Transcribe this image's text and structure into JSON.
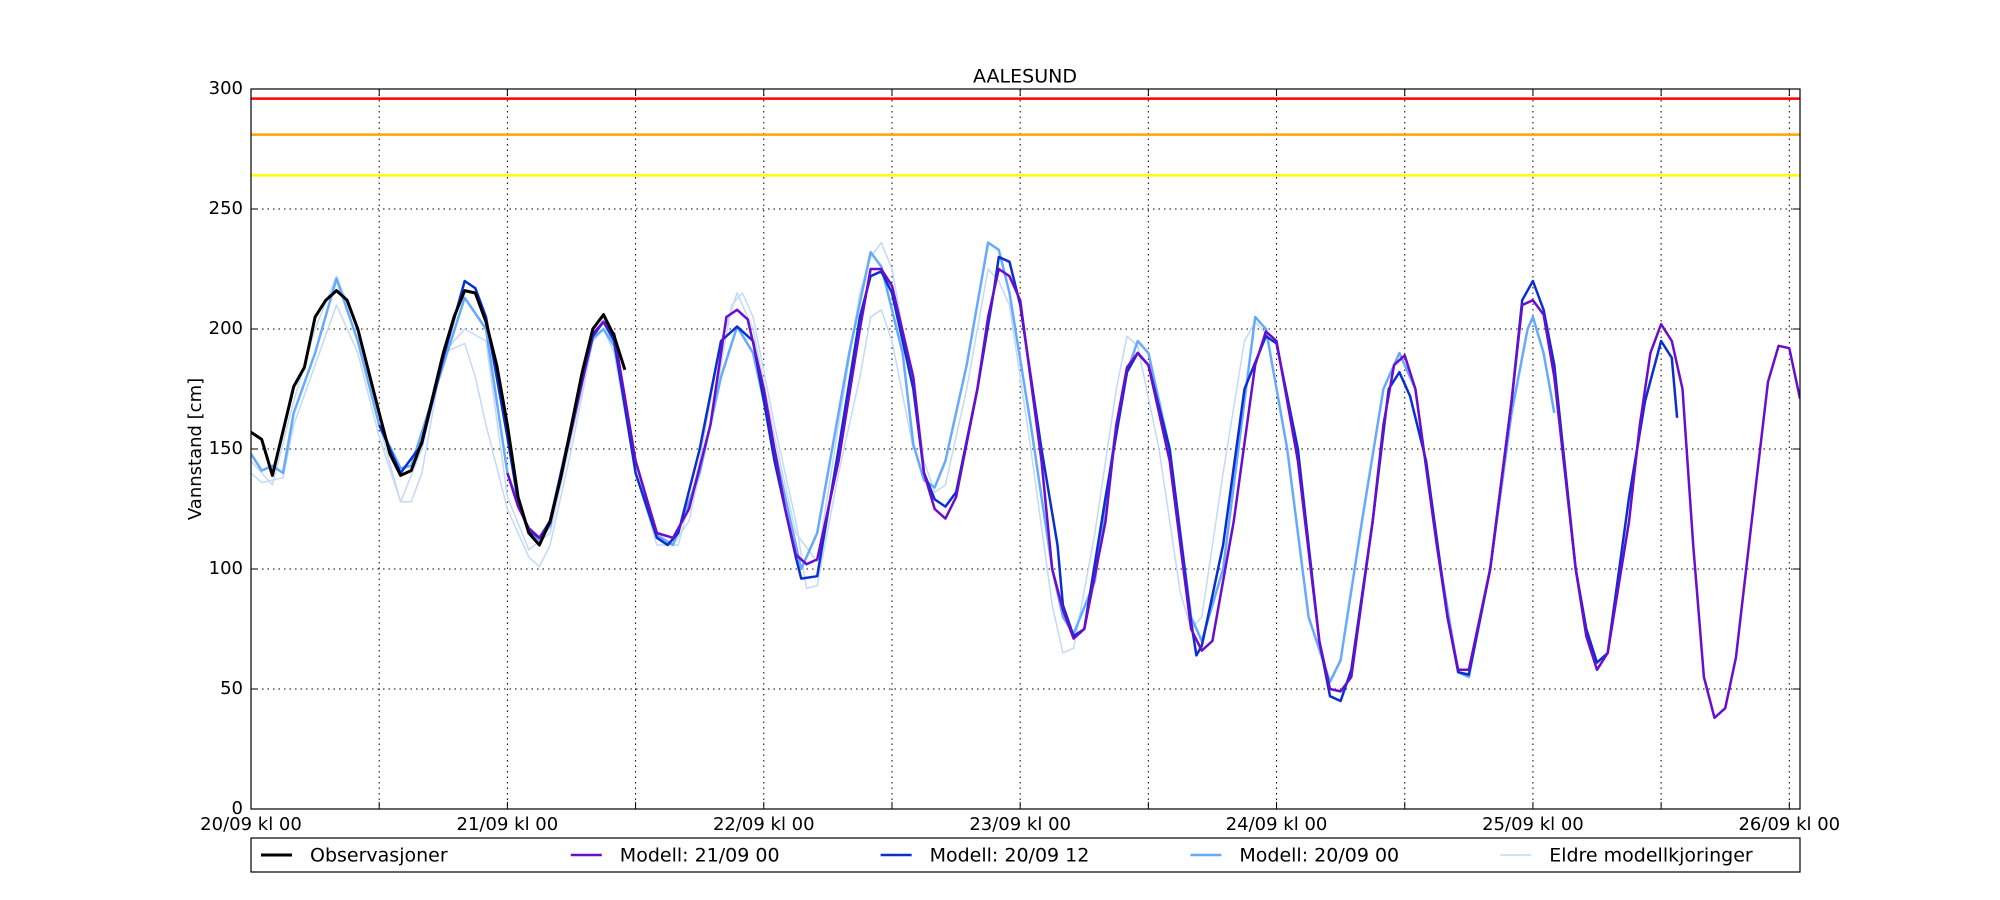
{
  "chart_data": {
    "type": "line",
    "title": "AALESUND",
    "ylabel": "Vannstand [cm]",
    "xlim": [
      0,
      145
    ],
    "xticks": [
      {
        "value": 0,
        "label": "20/09 kl 00"
      },
      {
        "value": 24,
        "label": "21/09 kl 00"
      },
      {
        "value": 48,
        "label": "22/09 kl 00"
      },
      {
        "value": 72,
        "label": "23/09 kl 00"
      },
      {
        "value": 96,
        "label": "24/09 kl 00"
      },
      {
        "value": 120,
        "label": "25/09 kl 00"
      },
      {
        "value": 144,
        "label": "26/09 kl 00"
      }
    ],
    "xminor": [
      12,
      36,
      60,
      84,
      108,
      132
    ],
    "ylim": [
      0,
      300
    ],
    "yticks": [
      0,
      50,
      100,
      150,
      200,
      250,
      300
    ],
    "grid": true,
    "legend": "bottom",
    "hlines": [
      {
        "value": 296,
        "color": "#ff0000"
      },
      {
        "value": 281,
        "color": "#ffa500"
      },
      {
        "value": 264,
        "color": "#ffff00"
      }
    ],
    "series": [
      {
        "name": "Observasjoner",
        "color": "#000000",
        "width": 3,
        "x": [
          0,
          1,
          2,
          4,
          5,
          6,
          7,
          8,
          9,
          10,
          12,
          13,
          14,
          15,
          16,
          18,
          19,
          20,
          21,
          22,
          23,
          24,
          25,
          26,
          27,
          28,
          29,
          30,
          31,
          32,
          33,
          34,
          35
        ],
        "values": [
          157,
          154,
          139,
          176,
          184,
          205,
          212,
          216,
          212,
          200,
          165,
          148,
          139,
          141,
          153,
          190,
          205,
          216,
          215,
          203,
          185,
          160,
          130,
          115,
          110,
          120,
          138,
          160,
          182,
          200,
          206,
          197,
          183
        ]
      },
      {
        "name": "Modell: 21/09 00",
        "color": "#6a0dcc",
        "width": 2.5,
        "x": [
          24,
          25,
          26,
          27,
          28,
          30,
          32,
          33,
          34,
          36,
          38,
          39.5,
          41,
          43,
          44.5,
          45.5,
          46.5,
          48,
          50,
          51,
          52,
          53,
          55,
          57,
          58,
          59,
          60,
          62,
          63,
          64,
          65,
          66,
          68,
          69,
          70,
          71,
          72,
          74,
          75,
          76,
          77,
          78,
          80,
          81,
          82,
          83,
          84,
          86,
          88,
          89,
          90,
          92,
          94,
          95,
          96,
          98,
          100,
          101,
          102,
          103,
          105,
          106,
          107,
          108,
          109,
          111,
          112,
          113,
          114,
          116,
          118,
          119,
          120,
          121,
          122,
          124,
          125,
          126,
          127,
          129,
          130,
          131,
          132,
          133,
          134,
          135,
          136,
          137,
          138,
          139,
          141,
          142,
          143,
          144,
          145
        ],
        "values": [
          140,
          126,
          117,
          113,
          119,
          158,
          198,
          203,
          198,
          145,
          115,
          113,
          125,
          160,
          205,
          208,
          204,
          175,
          125,
          106,
          102,
          104,
          145,
          200,
          225,
          225,
          218,
          180,
          140,
          125,
          121,
          130,
          175,
          205,
          225,
          222,
          212,
          145,
          100,
          83,
          71,
          75,
          120,
          160,
          184,
          190,
          185,
          145,
          75,
          66,
          70,
          120,
          185,
          199,
          195,
          145,
          70,
          50,
          49,
          55,
          120,
          160,
          185,
          189,
          175,
          110,
          80,
          58,
          58,
          100,
          170,
          210,
          212,
          206,
          180,
          100,
          72,
          58,
          65,
          120,
          160,
          190,
          202,
          195,
          175,
          110,
          55,
          38,
          42,
          63,
          140,
          178,
          193,
          192,
          171
        ]
      },
      {
        "name": "Modell: 20/09 12",
        "color": "#0a2fd0",
        "width": 2.5,
        "x": [
          12,
          14,
          16,
          18,
          20,
          21,
          22,
          24,
          25,
          26,
          27,
          28,
          30,
          32,
          33,
          34,
          36,
          38,
          39,
          40,
          42,
          44,
          45.5,
          47,
          49,
          51,
          51.5,
          53,
          55,
          57,
          58,
          59,
          60,
          62,
          63,
          64,
          65,
          66,
          68,
          69.5,
          70,
          71,
          72,
          74,
          75.5,
          76,
          77,
          78,
          80,
          82,
          83,
          84,
          86,
          88,
          88.5,
          89,
          91,
          93,
          95,
          96,
          98,
          100,
          101,
          102,
          103,
          105,
          106.5,
          107.5,
          108.5,
          110,
          112,
          113,
          114,
          116,
          118,
          119,
          120,
          121,
          122,
          124,
          125,
          126,
          127,
          129,
          130.5,
          132,
          133,
          133.5
        ],
        "values": [
          160,
          140,
          152,
          188,
          220,
          217,
          205,
          155,
          128,
          116,
          113,
          120,
          160,
          197,
          203,
          195,
          140,
          113,
          110,
          115,
          150,
          195,
          201,
          195,
          145,
          105,
          96,
          97,
          150,
          205,
          222,
          224,
          215,
          175,
          140,
          129,
          126,
          132,
          175,
          215,
          230,
          228,
          210,
          150,
          110,
          85,
          72,
          75,
          130,
          182,
          190,
          185,
          150,
          78,
          64,
          68,
          110,
          175,
          197,
          194,
          150,
          70,
          47,
          45,
          58,
          120,
          175,
          182,
          172,
          145,
          80,
          57,
          56,
          100,
          170,
          212,
          220,
          208,
          185,
          100,
          75,
          61,
          65,
          130,
          170,
          195,
          188,
          163
        ]
      },
      {
        "name": "Modell: 20/09 00",
        "color": "#66aaff",
        "width": 2.5,
        "x": [
          0,
          1,
          2,
          3,
          4,
          6,
          8,
          10,
          12,
          14,
          15,
          18,
          20,
          22,
          24,
          26,
          27,
          28,
          30,
          32,
          33,
          34,
          36,
          38,
          39.5,
          42,
          44,
          45.5,
          47,
          49,
          51.5,
          53,
          56,
          58,
          59,
          61,
          62,
          63,
          64,
          65,
          67,
          69,
          70,
          71,
          73,
          75,
          76,
          77,
          79,
          81,
          82,
          83,
          84,
          86,
          88,
          89,
          91,
          93,
          94,
          95,
          97,
          99,
          101,
          102,
          104,
          106,
          107.5,
          109,
          111,
          113,
          114,
          116,
          118,
          119.5,
          120,
          121,
          122
        ],
        "values": [
          148,
          141,
          143,
          140,
          165,
          190,
          221,
          195,
          160,
          142,
          143,
          185,
          213,
          200,
          140,
          115,
          112,
          118,
          160,
          196,
          200,
          193,
          145,
          114,
          110,
          140,
          180,
          201,
          190,
          150,
          100,
          115,
          190,
          232,
          226,
          190,
          152,
          137,
          134,
          145,
          185,
          236,
          233,
          215,
          160,
          100,
          80,
          73,
          95,
          160,
          182,
          195,
          190,
          150,
          80,
          70,
          100,
          170,
          205,
          200,
          150,
          80,
          53,
          62,
          120,
          175,
          190,
          175,
          110,
          57,
          55,
          100,
          165,
          200,
          205,
          190,
          165
        ]
      },
      {
        "name": "Eldre modellkjoringer",
        "color": "#c2d9f7",
        "width": 1.5,
        "runs": [
          {
            "x": [
              0,
              1,
              2,
              3,
              4,
              6,
              8,
              10,
              12,
              14,
              15,
              16,
              18,
              20,
              21,
              22,
              24,
              26,
              27,
              28,
              30,
              32,
              33,
              34,
              36,
              38,
              39.5,
              41,
              43,
              45,
              46,
              47,
              49,
              51,
              52,
              53,
              55,
              57,
              58,
              59,
              60,
              62
            ],
            "values": [
              140,
              136,
              137,
              138,
              160,
              185,
              210,
              190,
              155,
              128,
              128,
              140,
              190,
              194,
              180,
              160,
              125,
              105,
              101,
              110,
              150,
              195,
              200,
              190,
              140,
              115,
              110,
              120,
              160,
              210,
              215,
              205,
              160,
              120,
              92,
              93,
              140,
              180,
              205,
              208,
              195,
              150
            ]
          },
          {
            "x": [
              0,
              2,
              4,
              6,
              8,
              10,
              12,
              14,
              16,
              18,
              20,
              22,
              24,
              26,
              28,
              30,
              32,
              33,
              34,
              36,
              38,
              40,
              42,
              44,
              45.5,
              47,
              49,
              51,
              53,
              55,
              57,
              58,
              59,
              60,
              62,
              63,
              64,
              65,
              67,
              69,
              70,
              71,
              73,
              75,
              76,
              77,
              79,
              81,
              82,
              83,
              85,
              87,
              88,
              89,
              91,
              93,
              94,
              95
            ],
            "values": [
              145,
              135,
              170,
              200,
              222,
              200,
              160,
              128,
              150,
              190,
              200,
              195,
              130,
              108,
              115,
              155,
              195,
              205,
              195,
              140,
              110,
              110,
              145,
              195,
              215,
              200,
              155,
              115,
              103,
              160,
              215,
              230,
              236,
              225,
              175,
              145,
              132,
              135,
              175,
              225,
              220,
              210,
              150,
              85,
              65,
              67,
              115,
              175,
              197,
              193,
              150,
              90,
              75,
              80,
              140,
              195,
              203,
              198
            ]
          }
        ]
      }
    ]
  }
}
